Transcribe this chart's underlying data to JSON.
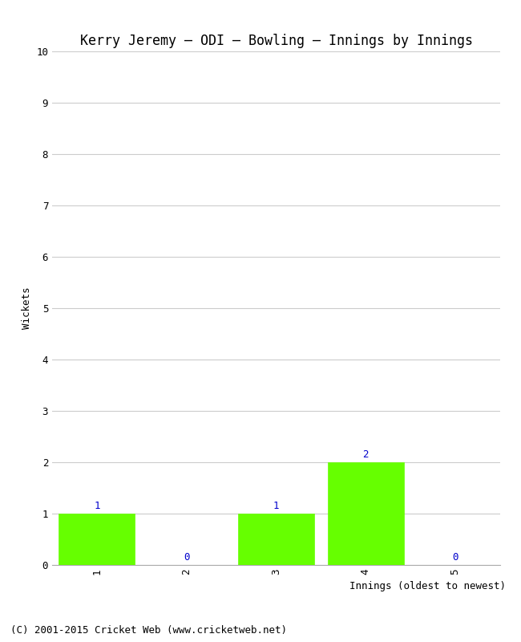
{
  "title": "Kerry Jeremy – ODI – Bowling – Innings by Innings",
  "xlabel": "Innings (oldest to newest)",
  "ylabel": "Wickets",
  "categories": [
    1,
    2,
    3,
    4,
    5
  ],
  "values": [
    1,
    0,
    1,
    2,
    0
  ],
  "bar_color": "#66ff00",
  "ylim": [
    0,
    10
  ],
  "yticks": [
    0,
    1,
    2,
    3,
    4,
    5,
    6,
    7,
    8,
    9,
    10
  ],
  "xticks": [
    1,
    2,
    3,
    4,
    5
  ],
  "background_color": "#ffffff",
  "grid_color": "#cccccc",
  "label_color": "#0000cc",
  "footer": "(C) 2001-2015 Cricket Web (www.cricketweb.net)",
  "title_fontsize": 12,
  "axis_label_fontsize": 9,
  "tick_fontsize": 9,
  "annotation_fontsize": 9,
  "footer_fontsize": 9
}
